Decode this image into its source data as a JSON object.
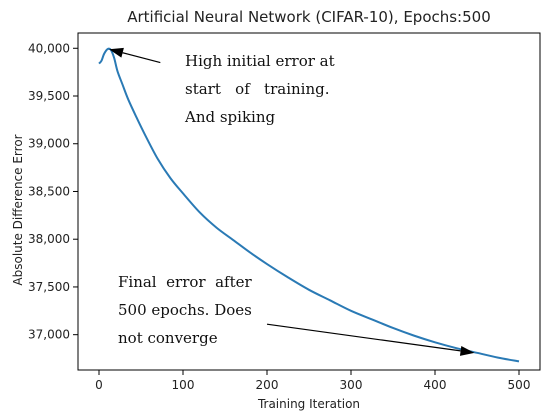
{
  "chart_data": {
    "type": "line",
    "title": "Artificial Neural Network (CIFAR-10), Epochs:500",
    "xlabel": "Training Iteration",
    "ylabel": "Absolute Difference Error",
    "xlim": [
      -25,
      525
    ],
    "ylim": [
      36630,
      40160
    ],
    "xticks": [
      0,
      100,
      200,
      300,
      400,
      500
    ],
    "xtick_labels": [
      "0",
      "100",
      "200",
      "300",
      "400",
      "500"
    ],
    "yticks": [
      37000,
      37500,
      38000,
      38500,
      39000,
      39500,
      40000
    ],
    "ytick_labels": [
      "37,000",
      "37,500",
      "38,000",
      "38,500",
      "39,000",
      "39,500",
      "40,000"
    ],
    "grid": false,
    "series": [
      {
        "color": "#2a7ab5",
        "x": [
          0,
          3,
          6,
          10,
          14,
          18,
          22,
          28,
          35,
          45,
          55,
          70,
          85,
          100,
          120,
          140,
          160,
          180,
          200,
          225,
          250,
          275,
          300,
          325,
          350,
          375,
          400,
          425,
          450,
          475,
          500
        ],
        "y": [
          39840,
          39870,
          39940,
          39990,
          39985,
          39900,
          39760,
          39620,
          39460,
          39270,
          39090,
          38840,
          38640,
          38480,
          38280,
          38120,
          37990,
          37860,
          37740,
          37600,
          37470,
          37360,
          37250,
          37160,
          37070,
          36990,
          36920,
          36860,
          36810,
          36760,
          36720
        ]
      }
    ],
    "annotations": [
      {
        "lines": [
          "High initial error at",
          "start   of   training.",
          "And spiking"
        ],
        "arrow_to": [
          12,
          39990
        ],
        "arrow_from": [
          73,
          39850
        ]
      },
      {
        "lines": [
          "Final  error  after",
          "500 epochs. Does",
          "not converge"
        ],
        "arrow_to": [
          447,
          36810
        ],
        "arrow_from": [
          200,
          37110
        ]
      }
    ]
  }
}
